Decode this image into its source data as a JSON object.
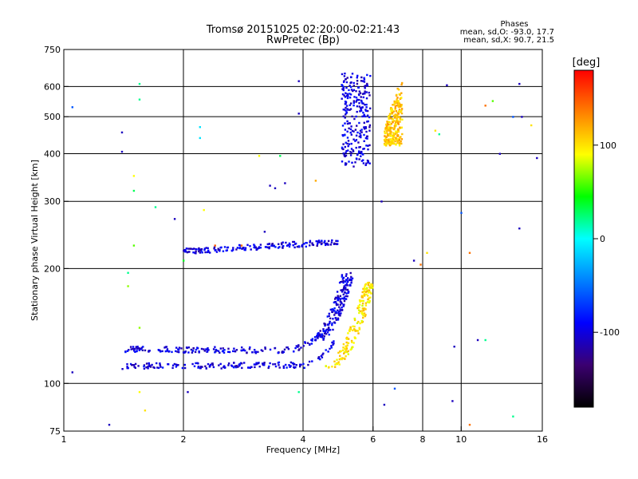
{
  "chart_data": {
    "type": "scatter",
    "title": "Tromsø 20151025 02:20:00-02:21:43",
    "subtitle": "RwPretec (Bp)",
    "annotation": {
      "heading": "Phases",
      "line_o": "mean, sd,O: -93.0, 17.7",
      "line_x": "mean, sd,X:  90.7, 21.5"
    },
    "xlabel": "Frequency [MHz]",
    "ylabel": "Stationary phase Virtual Height [km]",
    "x_scale": "log",
    "y_scale": "log",
    "xlim": [
      1,
      16
    ],
    "ylim": [
      75,
      750
    ],
    "x_ticks": [
      {
        "value": 1,
        "label": "1"
      },
      {
        "value": 2,
        "label": "2"
      },
      {
        "value": 4,
        "label": "4"
      },
      {
        "value": 6,
        "label": "6"
      },
      {
        "value": 8,
        "label": "8"
      },
      {
        "value": 10,
        "label": "10"
      },
      {
        "value": 16,
        "label": "16"
      }
    ],
    "y_ticks": [
      {
        "value": 75,
        "label": "75"
      },
      {
        "value": 100,
        "label": "100"
      },
      {
        "value": 200,
        "label": "200"
      },
      {
        "value": 300,
        "label": "300"
      },
      {
        "value": 400,
        "label": "400"
      },
      {
        "value": 500,
        "label": "500"
      },
      {
        "value": 600,
        "label": "600"
      },
      {
        "value": 750,
        "label": "750"
      }
    ],
    "x_gridlines": [
      2,
      4,
      6,
      8,
      10
    ],
    "y_gridlines": [
      100,
      200,
      300,
      400,
      500,
      600
    ],
    "grid": true,
    "colorbar": {
      "label": "[deg]",
      "range": [
        -180,
        180
      ],
      "ticks": [
        {
          "value": 100,
          "label": "100"
        },
        {
          "value": 0,
          "label": "0"
        },
        {
          "value": -100,
          "label": "-100"
        }
      ],
      "colors": [
        "#000000",
        "#3b0070",
        "#0000ff",
        "#0080ff",
        "#00ffff",
        "#00ff00",
        "#ffff00",
        "#ff8000",
        "#ff0000"
      ]
    },
    "traces": [
      {
        "description": "E/F1 trace O",
        "f_start": 1.4,
        "f_end": 4.6,
        "h_start": 123,
        "h_end": 122,
        "phase": -100,
        "curve_up_from": 3.5
      },
      {
        "description": "lower trace O",
        "f_start": 1.4,
        "f_end": 4.8,
        "h_start": 111,
        "h_end": 112,
        "phase": -100,
        "curve_up_from": 4.0
      },
      {
        "description": "F cusp X",
        "f_start": 4.6,
        "f_end": 5.9,
        "h_start": 110,
        "h_end": 185,
        "phase": 100
      },
      {
        "description": "F cusp O",
        "f_start": 4.3,
        "f_end": 5.2,
        "h_start": 130,
        "h_end": 195,
        "phase": -100
      },
      {
        "description": "F2 trace O",
        "f_start": 2.0,
        "f_end": 4.9,
        "h_start": 222,
        "h_end": 235,
        "phase": -100
      },
      {
        "description": "F2 layer O",
        "f_start": 5.0,
        "f_end": 5.9,
        "h_start": 370,
        "h_end": 650,
        "phase": -100
      },
      {
        "description": "F2 layer X",
        "f_start": 6.4,
        "f_end": 7.1,
        "h_start": 420,
        "h_end": 640,
        "phase": 110
      }
    ],
    "points": [
      [
        1.05,
        530,
        -60
      ],
      [
        1.05,
        107,
        -110
      ],
      [
        1.3,
        78,
        -110
      ],
      [
        1.4,
        405,
        -110
      ],
      [
        1.4,
        455,
        -110
      ],
      [
        1.55,
        610,
        20
      ],
      [
        1.55,
        555,
        20
      ],
      [
        1.5,
        350,
        90
      ],
      [
        1.5,
        320,
        30
      ],
      [
        1.5,
        230,
        60
      ],
      [
        1.45,
        180,
        70
      ],
      [
        1.55,
        140,
        70
      ],
      [
        1.55,
        95,
        90
      ],
      [
        1.6,
        85,
        100
      ],
      [
        1.45,
        195,
        20
      ],
      [
        1.7,
        290,
        20
      ],
      [
        1.9,
        270,
        -110
      ],
      [
        2.2,
        470,
        -10
      ],
      [
        2.2,
        440,
        -10
      ],
      [
        2.0,
        210,
        40
      ],
      [
        2.05,
        95,
        -110
      ],
      [
        2.25,
        285,
        90
      ],
      [
        3.2,
        250,
        -110
      ],
      [
        3.3,
        330,
        -110
      ],
      [
        3.4,
        325,
        -110
      ],
      [
        3.6,
        335,
        -110
      ],
      [
        3.9,
        620,
        -110
      ],
      [
        3.9,
        510,
        -110
      ],
      [
        3.9,
        95,
        20
      ],
      [
        3.1,
        395,
        90
      ],
      [
        3.5,
        395,
        30
      ],
      [
        4.3,
        340,
        120
      ],
      [
        6.3,
        300,
        -110
      ],
      [
        6.8,
        97,
        -60
      ],
      [
        6.4,
        88,
        -110
      ],
      [
        7.6,
        210,
        -110
      ],
      [
        7.9,
        205,
        140
      ],
      [
        8.2,
        220,
        100
      ],
      [
        8.6,
        460,
        100
      ],
      [
        8.8,
        450,
        20
      ],
      [
        9.2,
        605,
        -110
      ],
      [
        9.5,
        90,
        -110
      ],
      [
        9.6,
        125,
        -110
      ],
      [
        10.0,
        280,
        -60
      ],
      [
        10.5,
        78,
        140
      ],
      [
        11.0,
        130,
        -110
      ],
      [
        11.5,
        130,
        20
      ],
      [
        11.5,
        535,
        140
      ],
      [
        12.0,
        550,
        60
      ],
      [
        12.5,
        400,
        -110
      ],
      [
        13.5,
        500,
        -60
      ],
      [
        13.5,
        82,
        20
      ],
      [
        14.0,
        610,
        -110
      ],
      [
        14.0,
        255,
        -110
      ],
      [
        14.2,
        500,
        -110
      ],
      [
        15.0,
        475,
        100
      ],
      [
        15.5,
        390,
        -110
      ],
      [
        10.5,
        220,
        140
      ],
      [
        2.8,
        230,
        140
      ],
      [
        2.4,
        230,
        150
      ]
    ]
  }
}
